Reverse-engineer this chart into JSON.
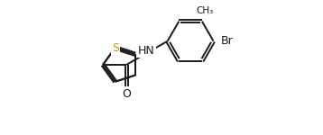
{
  "background_color": "#ffffff",
  "line_color": "#1a1a1a",
  "sulfur_color": "#c8a000",
  "br_color": "#404040",
  "figsize": [
    3.58,
    1.5
  ],
  "dpi": 100,
  "xlim": [
    0,
    10
  ],
  "ylim": [
    0,
    4.2
  ],
  "lw": 1.4,
  "font_size": 9.0,
  "label_S": "S",
  "label_HN": "HN",
  "label_O": "O",
  "label_Br": "Br",
  "label_Me": "CH₃"
}
